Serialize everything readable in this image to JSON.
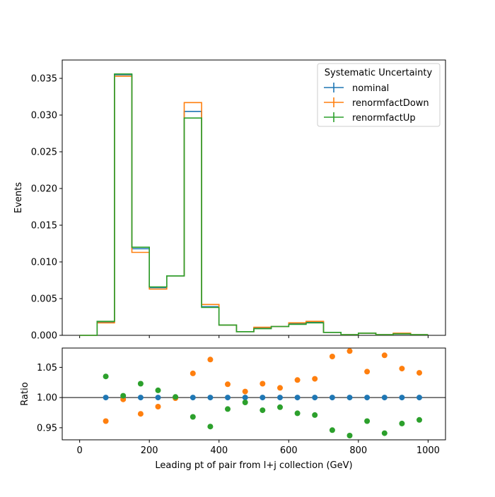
{
  "chart_data": [
    {
      "type": "step",
      "ylabel": "Events",
      "xlim": [
        -50,
        1050
      ],
      "ylim": [
        0,
        0.0375
      ],
      "yticks": [
        "0.000",
        "0.005",
        "0.010",
        "0.015",
        "0.020",
        "0.025",
        "0.030",
        "0.035"
      ],
      "ytick_values": [
        0,
        0.005,
        0.01,
        0.015,
        0.02,
        0.025,
        0.03,
        0.035
      ],
      "bin_edges": [
        0,
        50,
        100,
        150,
        200,
        250,
        300,
        350,
        400,
        450,
        500,
        550,
        600,
        650,
        700,
        750,
        800,
        850,
        900,
        950,
        1000
      ],
      "legend": {
        "title": "Systematic Uncertainty",
        "placement": "top-right"
      },
      "series": [
        {
          "name": "nominal",
          "color": "#1f77b4",
          "values": [
            0,
            0.0018,
            0.0355,
            0.0118,
            0.0065,
            0.0081,
            0.0305,
            0.0039,
            0.0014,
            0.0005,
            0.001,
            0.0012,
            0.0016,
            0.0018,
            0.0004,
            0.0001,
            0.0003,
            0.0001,
            0.0002,
            0.0001
          ]
        },
        {
          "name": "renormfactDown",
          "color": "#ff7f0e",
          "values": [
            0,
            0.0017,
            0.0353,
            0.0113,
            0.0063,
            0.0081,
            0.0317,
            0.0042,
            0.0014,
            0.0005,
            0.0011,
            0.0012,
            0.0017,
            0.0019,
            0.0004,
            0.0001,
            0.0003,
            0.0001,
            0.0003,
            0.0001
          ]
        },
        {
          "name": "renormfactUp",
          "color": "#2ca02c",
          "values": [
            0,
            0.0019,
            0.0356,
            0.012,
            0.0066,
            0.0081,
            0.0296,
            0.0038,
            0.0014,
            0.0005,
            0.0009,
            0.0012,
            0.0015,
            0.0017,
            0.0004,
            0.0001,
            0.0003,
            0.0001,
            0.0002,
            0.0001
          ]
        }
      ]
    },
    {
      "type": "scatter",
      "ylabel": "Ratio",
      "xlabel": "Leading pt of pair from l+j collection (GeV)",
      "xlim": [
        -50,
        1050
      ],
      "ylim": [
        0.93,
        1.082
      ],
      "xticks": [
        "0",
        "200",
        "400",
        "600",
        "800",
        "1000"
      ],
      "xtick_values": [
        0,
        200,
        400,
        600,
        800,
        1000
      ],
      "yticks": [
        "0.95",
        "1.00",
        "1.05"
      ],
      "ytick_values": [
        0.95,
        1.0,
        1.05
      ],
      "reference_line": 1.0,
      "x": [
        75,
        125,
        175,
        225,
        275,
        325,
        375,
        425,
        475,
        525,
        575,
        625,
        675,
        725,
        775,
        825,
        875,
        925,
        975
      ],
      "series": [
        {
          "name": "nominal",
          "color": "#1f77b4",
          "values": [
            1.0,
            1.0,
            1.0,
            1.0,
            1.0,
            1.0,
            1.0,
            1.0,
            1.0,
            1.0,
            1.0,
            1.0,
            1.0,
            1.0,
            1.0,
            1.0,
            1.0,
            1.0,
            1.0
          ]
        },
        {
          "name": "renormfactDown",
          "color": "#ff7f0e",
          "values": [
            0.961,
            0.997,
            0.973,
            0.985,
            0.999,
            1.04,
            1.063,
            1.022,
            1.01,
            1.023,
            1.016,
            1.029,
            1.031,
            1.068,
            1.077,
            1.043,
            1.07,
            1.048,
            1.041
          ]
        },
        {
          "name": "renormfactUp",
          "color": "#2ca02c",
          "values": [
            1.035,
            1.003,
            1.023,
            1.012,
            1.001,
            0.968,
            0.952,
            0.981,
            0.992,
            0.979,
            0.984,
            0.974,
            0.971,
            0.946,
            0.937,
            0.961,
            0.941,
            0.957,
            0.963
          ]
        }
      ]
    }
  ]
}
